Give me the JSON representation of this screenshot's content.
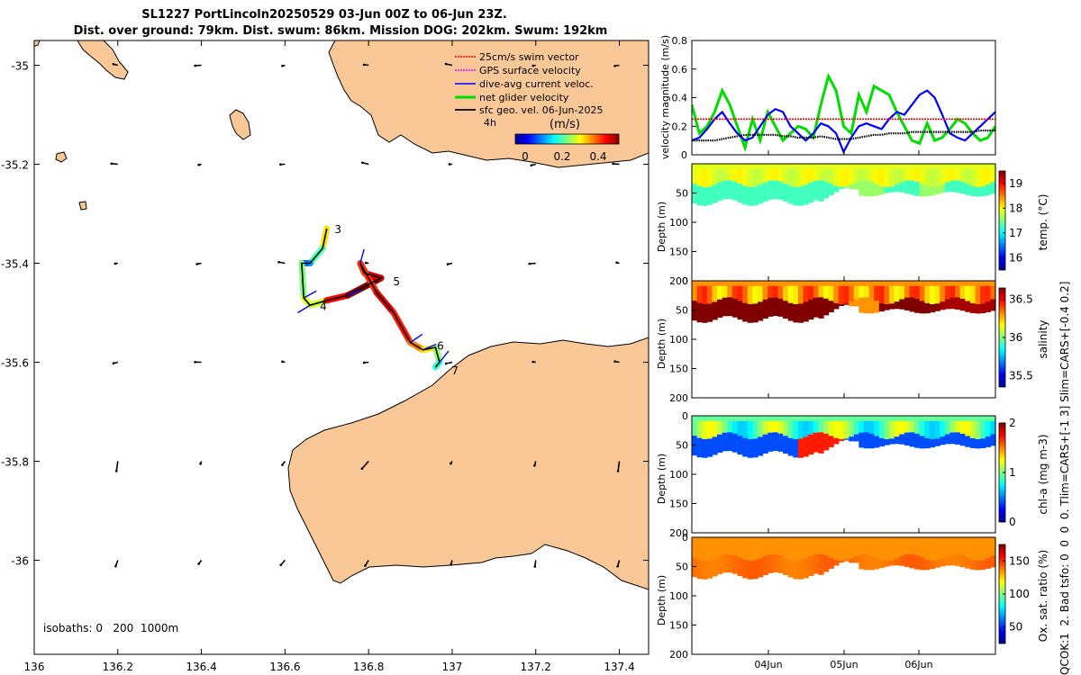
{
  "header": {
    "line1": "SL1227 PortLincoln20250529 03-Jun 00Z to 06-Jun 23Z.",
    "line2": "Dist. over ground: 79km. Dist. swum: 86km. Mission DOG: 202km. Swum: 192km"
  },
  "colors": {
    "land": "#fac896",
    "swim": "#ff0000",
    "gps": "#ff00ff",
    "current": "#0000ff",
    "net": "#00dd00",
    "geo": "#000000",
    "track_speed_colormap": "jet"
  },
  "chart_data": [
    {
      "type": "map",
      "title": "SL1227 PortLincoln20250529 03-Jun 00Z to 06-Jun 23Z.",
      "xlim": [
        136.0,
        137.47
      ],
      "ylim": [
        -36.19,
        -34.95
      ],
      "x_ticks": [
        136,
        136.2,
        136.4,
        136.6,
        136.8,
        137,
        137.2,
        137.4
      ],
      "x_tick_labels": [
        "136",
        "136.2",
        "136.4",
        "136.6",
        "136.8",
        "137",
        "137.2",
        "137.4"
      ],
      "y_ticks": [
        -35,
        -35.2,
        -35.4,
        -35.6,
        -35.8,
        -36
      ],
      "y_tick_labels": [
        "-35",
        "-35.2",
        "-35.4",
        "-35.6",
        "-35.8",
        "-36"
      ],
      "legend": {
        "position": "top-right",
        "entries": [
          {
            "label": "25cm/s swim vector",
            "color_key": "swim"
          },
          {
            "label": "GPS surface velocity",
            "color_key": "gps"
          },
          {
            "label": "dive-avg current veloc.",
            "color_key": "current"
          },
          {
            "label": "net glider velocity",
            "color_key": "net"
          },
          {
            "label": "sfc geo. vel. 06-Jun-2025",
            "color_key": "geo"
          }
        ],
        "time_label": "4h"
      },
      "colorbar": {
        "label": "(m/s)",
        "ticks": [
          0,
          0.2,
          0.4
        ],
        "tick_labels": [
          "0",
          "0.2",
          "0.4"
        ],
        "range": [
          0,
          0.5
        ]
      },
      "isobath_text": "isobaths: 0   200  1000m",
      "track": [
        {
          "lon": 136.7,
          "lat": -35.33,
          "speed": 0.35
        },
        {
          "lon": 136.69,
          "lat": -35.37,
          "speed": 0.3
        },
        {
          "lon": 136.66,
          "lat": -35.4,
          "speed": 0.15
        },
        {
          "lon": 136.65,
          "lat": -35.4,
          "speed": 0.12
        },
        {
          "lon": 136.64,
          "lat": -35.4,
          "speed": 0.1
        },
        {
          "lon": 136.645,
          "lat": -35.47,
          "speed": 0.4
        },
        {
          "lon": 136.66,
          "lat": -35.485,
          "speed": 0.2
        },
        {
          "lon": 136.7,
          "lat": -35.475,
          "speed": 0.38
        },
        {
          "lon": 136.75,
          "lat": -35.465,
          "speed": 0.5
        },
        {
          "lon": 136.83,
          "lat": -35.43,
          "speed": 0.5
        },
        {
          "lon": 136.79,
          "lat": -35.42,
          "speed": 0.42
        },
        {
          "lon": 136.78,
          "lat": -35.4,
          "speed": 0.38
        },
        {
          "lon": 136.82,
          "lat": -35.46,
          "speed": 0.45
        },
        {
          "lon": 136.86,
          "lat": -35.5,
          "speed": 0.45
        },
        {
          "lon": 136.9,
          "lat": -35.56,
          "speed": 0.4
        },
        {
          "lon": 136.93,
          "lat": -35.575,
          "speed": 0.35
        },
        {
          "lon": 136.96,
          "lat": -35.57,
          "speed": 0.3
        },
        {
          "lon": 136.97,
          "lat": -35.6,
          "speed": 0.22
        },
        {
          "lon": 136.96,
          "lat": -35.61,
          "speed": 0.2
        }
      ],
      "waypoint_labels": [
        {
          "label": "3",
          "lon": 136.71,
          "lat": -35.33
        },
        {
          "label": "4",
          "lon": 136.675,
          "lat": -35.485
        },
        {
          "label": "5",
          "lon": 136.85,
          "lat": -35.435
        },
        {
          "label": "6",
          "lon": 136.955,
          "lat": -35.565
        },
        {
          "label": "7",
          "lon": 136.99,
          "lat": -35.615
        }
      ]
    },
    {
      "type": "line",
      "ylabel": "velocity magnitude (m/s)",
      "ylim": [
        0,
        0.8
      ],
      "y_ticks": [
        0,
        0.2,
        0.4,
        0.6,
        0.8
      ],
      "y_tick_labels": [
        "0",
        "0.2",
        "0.4",
        "0.6",
        "0.8"
      ],
      "x": [
        0,
        0.1,
        0.2,
        0.3,
        0.4,
        0.5,
        0.6,
        0.7,
        0.8,
        0.9,
        1.0,
        1.1,
        1.2,
        1.3,
        1.4,
        1.5,
        1.6,
        1.7,
        1.8,
        1.9,
        2.0,
        2.1,
        2.2,
        2.3,
        2.4,
        2.5,
        2.6,
        2.7,
        2.8,
        2.9,
        3.0,
        3.1,
        3.2,
        3.3,
        3.4,
        3.5,
        3.6,
        3.7,
        3.8,
        3.9,
        4.0
      ],
      "series": [
        {
          "name": "net glider velocity",
          "color_key": "net",
          "values": [
            0.35,
            0.15,
            0.2,
            0.3,
            0.45,
            0.35,
            0.2,
            0.05,
            0.25,
            0.1,
            0.3,
            0.2,
            0.1,
            0.15,
            0.2,
            0.18,
            0.12,
            0.35,
            0.55,
            0.45,
            0.2,
            0.15,
            0.42,
            0.3,
            0.48,
            0.45,
            0.42,
            0.3,
            0.2,
            0.1,
            0.08,
            0.22,
            0.1,
            0.12,
            0.18,
            0.25,
            0.22,
            0.15,
            0.1,
            0.12,
            0.2
          ]
        },
        {
          "name": "dive-avg current veloc.",
          "color_key": "current",
          "values": [
            0.1,
            0.12,
            0.18,
            0.25,
            0.3,
            0.22,
            0.15,
            0.1,
            0.12,
            0.2,
            0.28,
            0.32,
            0.3,
            0.2,
            0.15,
            0.1,
            0.15,
            0.22,
            0.2,
            0.15,
            0.02,
            0.12,
            0.2,
            0.22,
            0.2,
            0.18,
            0.25,
            0.3,
            0.28,
            0.35,
            0.42,
            0.45,
            0.4,
            0.28,
            0.15,
            0.12,
            0.1,
            0.15,
            0.2,
            0.25,
            0.3
          ]
        },
        {
          "name": "25cm/s swim vector",
          "color_key": "swim",
          "values": [
            0.25,
            0.25,
            0.25,
            0.25,
            0.25,
            0.25,
            0.25,
            0.25,
            0.25,
            0.25,
            0.25,
            0.25,
            0.25,
            0.25,
            0.25,
            0.25,
            0.25,
            0.25,
            0.25,
            0.25,
            0.25,
            0.25,
            0.25,
            0.25,
            0.25,
            0.25,
            0.25,
            0.25,
            0.25,
            0.25,
            0.25,
            0.25,
            0.25,
            0.25,
            0.25,
            0.25,
            0.25,
            0.25,
            0.25,
            0.25,
            0.25
          ]
        },
        {
          "name": "sfc geo. vel.",
          "color_key": "geo",
          "values": [
            0.1,
            0.1,
            0.1,
            0.1,
            0.11,
            0.12,
            0.13,
            0.14,
            0.14,
            0.14,
            0.14,
            0.14,
            0.13,
            0.13,
            0.12,
            0.12,
            0.12,
            0.13,
            0.12,
            0.11,
            0.11,
            0.11,
            0.12,
            0.13,
            0.14,
            0.14,
            0.15,
            0.15,
            0.15,
            0.16,
            0.16,
            0.16,
            0.16,
            0.16,
            0.16,
            0.16,
            0.16,
            0.16,
            0.17,
            0.17,
            0.17
          ]
        }
      ]
    },
    {
      "type": "heatmap",
      "ylabel": "Depth (m)",
      "colorbar_label": "temp. (°C)",
      "ylim": [
        0,
        200
      ],
      "y_ticks": [
        0,
        50,
        100,
        150,
        200
      ],
      "y_tick_labels": [
        "",
        "50",
        "100",
        "150",
        "200"
      ],
      "clim": [
        15.5,
        19.5
      ],
      "cbar_ticks": [
        16,
        17,
        18,
        19
      ],
      "cbar_tick_labels": [
        "16",
        "17",
        "18",
        "19"
      ],
      "surface_value": 17.9,
      "deep_value": 17.4,
      "mid_value": 17.3
    },
    {
      "type": "heatmap",
      "ylabel": "Depth (m)",
      "colorbar_label": "salinity",
      "ylim": [
        0,
        200
      ],
      "y_ticks": [
        0,
        50,
        100,
        150,
        200
      ],
      "y_tick_labels": [
        "0",
        "50",
        "100",
        "150",
        "200"
      ],
      "clim": [
        35.35,
        36.65
      ],
      "cbar_ticks": [
        35.5,
        36,
        36.5
      ],
      "cbar_tick_labels": [
        "35.5",
        "36",
        "36.5"
      ],
      "surface_value": 36.3,
      "deep_value": 36.65,
      "mid_value": 36.45
    },
    {
      "type": "heatmap",
      "ylabel": "Depth (m)",
      "colorbar_label": "chl-a (mg m-3)",
      "ylim": [
        0,
        200
      ],
      "y_ticks": [
        0,
        50,
        100,
        150,
        200
      ],
      "y_tick_labels": [
        "0",
        "50",
        "100",
        "150",
        "200"
      ],
      "clim": [
        0,
        2
      ],
      "cbar_ticks": [
        0,
        1,
        2
      ],
      "cbar_tick_labels": [
        "0",
        "1",
        "2"
      ],
      "surface_value": 0.95,
      "deep_value": 0.4,
      "mid_value": 1.45
    },
    {
      "type": "heatmap",
      "ylabel": "Depth (m)",
      "colorbar_label": "Ox. sat. ratio (%)",
      "ylim": [
        0,
        200
      ],
      "y_ticks": [
        0,
        50,
        100,
        150,
        200
      ],
      "y_tick_labels": [
        "0",
        "50",
        "100",
        "150",
        "200"
      ],
      "clim": [
        25,
        175
      ],
      "cbar_ticks": [
        50,
        100,
        150
      ],
      "cbar_tick_labels": [
        "50",
        "100",
        "150"
      ],
      "surface_value": 135,
      "deep_value": 130,
      "mid_value": 140
    }
  ],
  "time_axis": {
    "ticks": [
      "04Jun",
      "05Jun",
      "06Jun"
    ]
  },
  "side_caption": "QCOK:1  2. Bad tsfo: 0  0  0  0. Tlim=CARS+[-1 3] Slim=CARS+[-0.4 0.2]"
}
